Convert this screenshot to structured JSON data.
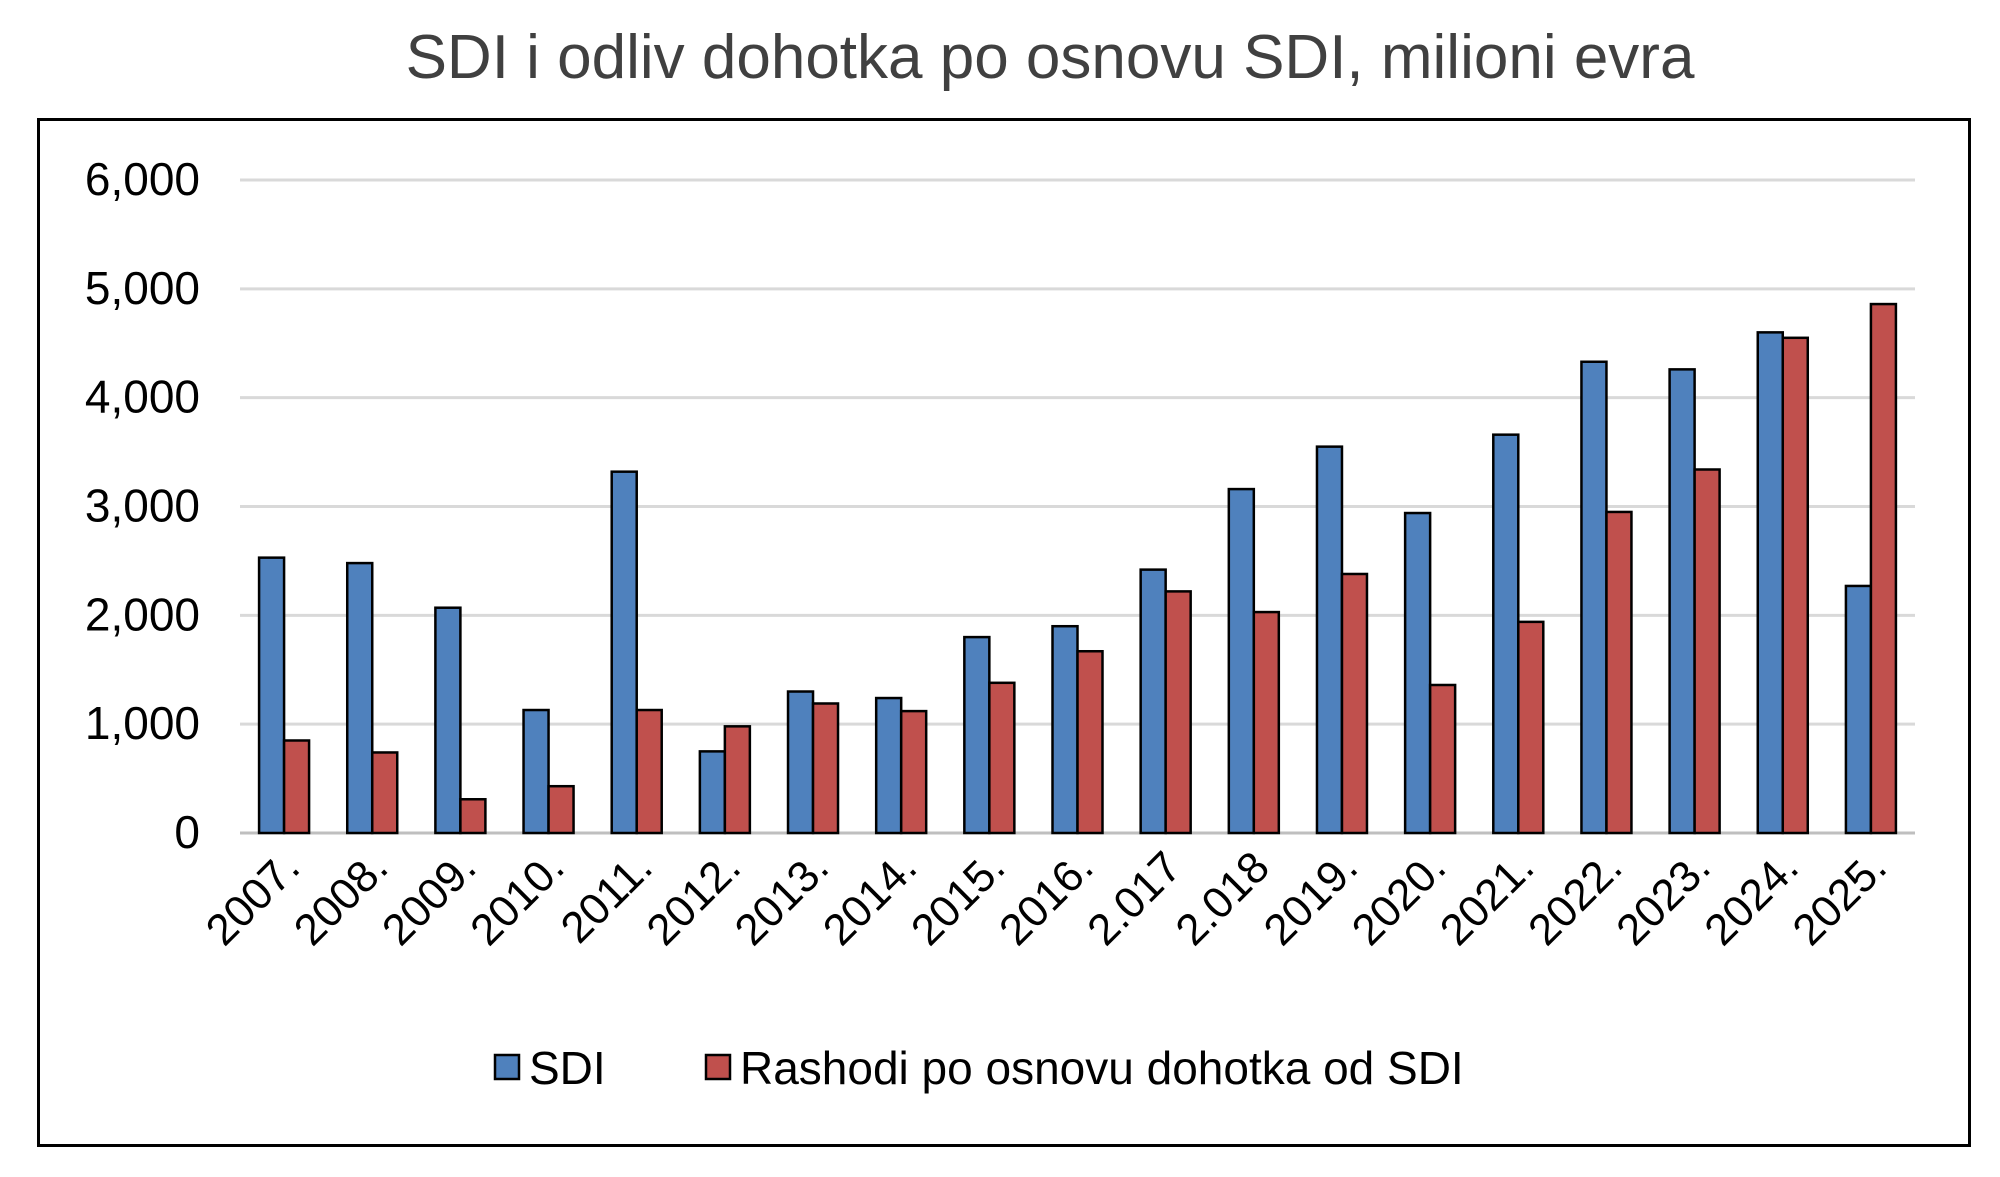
{
  "chart_data": {
    "type": "bar",
    "title": "SDI i odliv dohotka po osnovu SDI, milioni evra",
    "xlabel": "",
    "ylabel": "",
    "ylim": [
      0,
      6000
    ],
    "yticks": [
      0,
      1000,
      2000,
      3000,
      4000,
      5000,
      6000
    ],
    "ytick_labels": [
      "0",
      "1,000",
      "2,000",
      "3,000",
      "4,000",
      "5,000",
      "6,000"
    ],
    "grid": true,
    "legend_position": "bottom",
    "categories": [
      "2007.",
      "2008.",
      "2009.",
      "2010.",
      "2011.",
      "2012.",
      "2013.",
      "2014.",
      "2015.",
      "2016.",
      "2.017",
      "2.018",
      "2019.",
      "2020.",
      "2021.",
      "2022.",
      "2023.",
      "2024.",
      "2025."
    ],
    "series": [
      {
        "name": "SDI",
        "color": "#4F81BD",
        "values": [
          2530,
          2480,
          2070,
          1130,
          3320,
          750,
          1300,
          1240,
          1800,
          1900,
          2420,
          3160,
          3550,
          2940,
          3660,
          4330,
          4260,
          4600,
          2270
        ]
      },
      {
        "name": "Rashodi po osnovu dohotka od SDI",
        "color": "#C0504D",
        "values": [
          850,
          740,
          310,
          430,
          1130,
          980,
          1190,
          1120,
          1380,
          1670,
          2220,
          2030,
          2380,
          1360,
          1940,
          2950,
          3340,
          4550,
          4860
        ]
      }
    ]
  }
}
